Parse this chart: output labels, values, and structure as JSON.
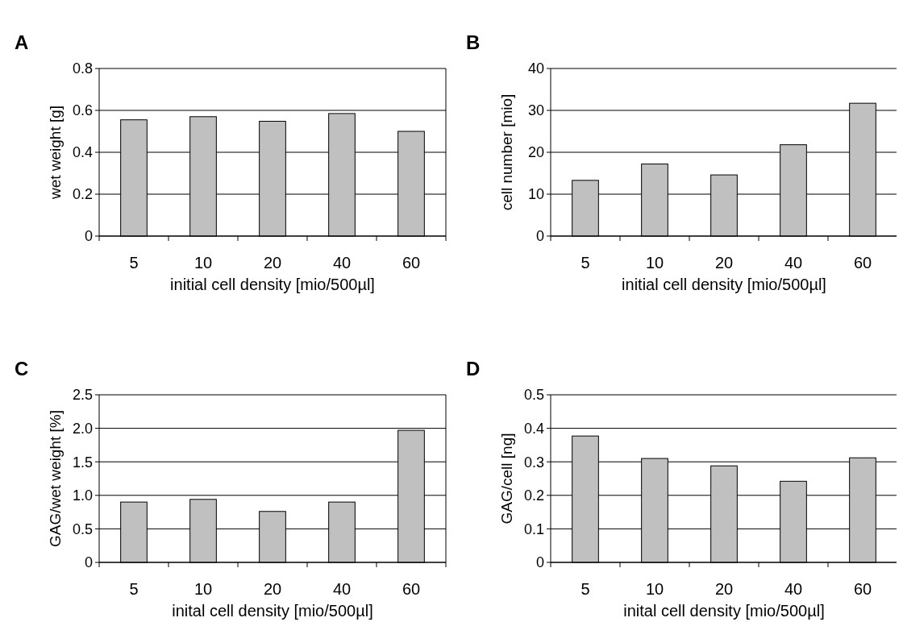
{
  "chart_data": [
    {
      "type": "bar",
      "title": "A",
      "xlabel": "initial cell density [mio/500µl]",
      "ylabel": "wet weight [g]",
      "categories": [
        "5",
        "10",
        "20",
        "40",
        "60"
      ],
      "values": [
        0.555,
        0.57,
        0.548,
        0.585,
        0.5
      ],
      "color": "#c0c0c0",
      "ylim": [
        0,
        0.8
      ],
      "yticks": [
        0,
        0.2,
        0.4,
        0.6,
        0.8
      ],
      "grid": "y"
    },
    {
      "type": "bar",
      "title": "B",
      "xlabel": "initial cell density [mio/500µl]",
      "ylabel": "cell number [mio]",
      "categories": [
        "5",
        "10",
        "20",
        "40",
        "60"
      ],
      "values": [
        13.3,
        17.2,
        14.6,
        21.8,
        31.7
      ],
      "color": "#c0c0c0",
      "ylim": [
        0,
        40
      ],
      "yticks": [
        0,
        10,
        20,
        30,
        40
      ],
      "grid": "y"
    },
    {
      "type": "bar",
      "title": "C",
      "xlabel": "inital cell density [mio/500µl]",
      "ylabel": "GAG/wet weight [%]",
      "categories": [
        "5",
        "10",
        "20",
        "40",
        "60"
      ],
      "values": [
        0.9,
        0.94,
        0.76,
        0.9,
        1.97
      ],
      "color": "#c0c0c0",
      "ylim": [
        0,
        2.5
      ],
      "yticks": [
        0,
        0.5,
        {
          "value": 1,
          "label": "1.0"
        },
        1.5,
        {
          "value": 2,
          "label": "2.0"
        },
        2.5
      ],
      "grid": "y"
    },
    {
      "type": "bar",
      "title": "D",
      "xlabel": "inital cell density [mio/500µl]",
      "ylabel": "GAG/cell [ng]",
      "categories": [
        "5",
        "10",
        "20",
        "40",
        "60"
      ],
      "values": [
        0.377,
        0.31,
        0.288,
        0.242,
        0.312
      ],
      "color": "#c0c0c0",
      "ylim": [
        0,
        0.5
      ],
      "yticks": [
        0,
        0.1,
        0.2,
        0.3,
        0.4,
        0.5
      ],
      "grid": "y"
    }
  ]
}
